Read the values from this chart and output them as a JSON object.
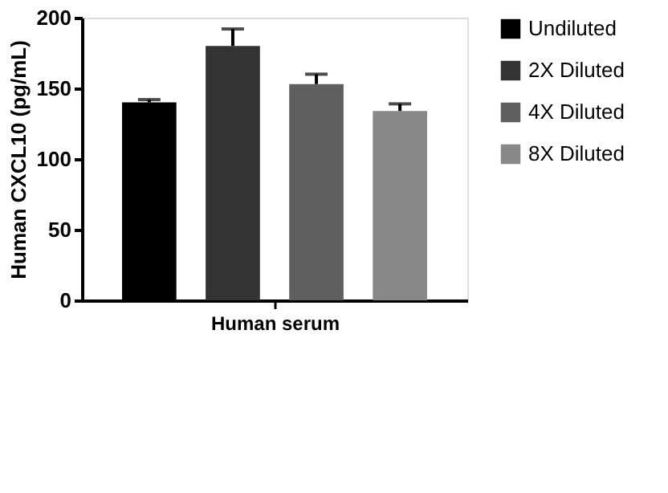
{
  "chart_data": {
    "type": "bar",
    "ylabel": "Human CXCL10 (pg/mL)",
    "xlabel": "Human serum",
    "categories": [
      null
    ],
    "series": [
      {
        "name": "Undiluted",
        "color": "#000000",
        "values": [
          140
        ],
        "errors": [
          2
        ]
      },
      {
        "name": "2X Diluted",
        "color": "#333333",
        "values": [
          180
        ],
        "errors": [
          12
        ]
      },
      {
        "name": "4X Diluted",
        "color": "#5f5f5f",
        "values": [
          153
        ],
        "errors": [
          7
        ]
      },
      {
        "name": "8X Diluted",
        "color": "#888888",
        "values": [
          134
        ],
        "errors": [
          5
        ]
      }
    ],
    "ylim": [
      0,
      200
    ],
    "yticks": [
      0,
      50,
      100,
      150,
      200
    ],
    "grid": false,
    "legend": "top right"
  }
}
